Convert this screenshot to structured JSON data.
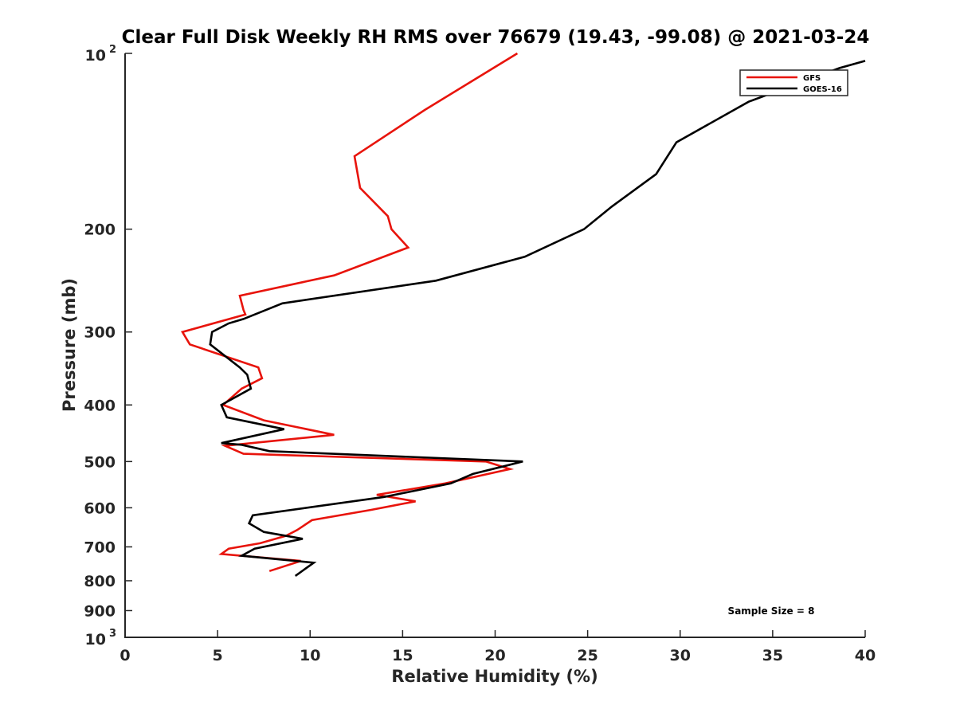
{
  "chart_data": {
    "type": "line",
    "title": "Clear Full Disk Weekly RH RMS over 76679 (19.43, -99.08) @ 2021-03-24",
    "xlabel": "Relative Humidity (%)",
    "ylabel": "Pressure (mb)",
    "xlim": [
      0,
      40
    ],
    "ylim": [
      100,
      1000
    ],
    "y_scale": "log",
    "y_reversed": true,
    "x_ticks": [
      "0",
      "5",
      "10",
      "15",
      "20",
      "25",
      "30",
      "35",
      "40"
    ],
    "y_ticks": [
      {
        "value": 100,
        "base": "10",
        "exp": "2"
      },
      {
        "value": 200,
        "label": "200"
      },
      {
        "value": 300,
        "label": "300"
      },
      {
        "value": 400,
        "label": "400"
      },
      {
        "value": 500,
        "label": "500"
      },
      {
        "value": 600,
        "label": "600"
      },
      {
        "value": 700,
        "label": "700"
      },
      {
        "value": 800,
        "label": "800"
      },
      {
        "value": 900,
        "label": "900"
      },
      {
        "value": 1000,
        "base": "10",
        "exp": "3"
      }
    ],
    "grid": false,
    "legend_position": "top-right",
    "annotation": "Sample Size = 8",
    "series": [
      {
        "name": "GFS",
        "color": "#e8140c",
        "points": [
          [
            21.2,
            100
          ],
          [
            16.2,
            125
          ],
          [
            12.4,
            150
          ],
          [
            12.7,
            170
          ],
          [
            14.2,
            190
          ],
          [
            14.4,
            200
          ],
          [
            15.3,
            215
          ],
          [
            11.3,
            240
          ],
          [
            6.2,
            260
          ],
          [
            6.4,
            275
          ],
          [
            6.5,
            280
          ],
          [
            3.1,
            300
          ],
          [
            3.5,
            315
          ],
          [
            7.2,
            345
          ],
          [
            7.4,
            360
          ],
          [
            6.3,
            375
          ],
          [
            5.3,
            400
          ],
          [
            7.5,
            425
          ],
          [
            11.3,
            450
          ],
          [
            5.4,
            470
          ],
          [
            6.4,
            485
          ],
          [
            19.5,
            500
          ],
          [
            20.8,
            515
          ],
          [
            17.3,
            545
          ],
          [
            13.6,
            570
          ],
          [
            15.7,
            585
          ],
          [
            13.3,
            605
          ],
          [
            10.1,
            630
          ],
          [
            9.3,
            655
          ],
          [
            8.7,
            670
          ],
          [
            7.3,
            690
          ],
          [
            5.6,
            705
          ],
          [
            5.2,
            720
          ],
          [
            9.5,
            740
          ],
          [
            7.8,
            770
          ]
        ]
      },
      {
        "name": "GOES-16",
        "color": "#000000",
        "points": [
          [
            40.0,
            103
          ],
          [
            38.6,
            106
          ],
          [
            33.7,
            121
          ],
          [
            29.8,
            142
          ],
          [
            28.7,
            161
          ],
          [
            26.3,
            183
          ],
          [
            24.8,
            200
          ],
          [
            21.6,
            223
          ],
          [
            16.8,
            245
          ],
          [
            8.5,
            268
          ],
          [
            6.4,
            285
          ],
          [
            5.6,
            290
          ],
          [
            4.7,
            300
          ],
          [
            4.6,
            315
          ],
          [
            6.2,
            345
          ],
          [
            6.6,
            355
          ],
          [
            6.8,
            375
          ],
          [
            5.2,
            400
          ],
          [
            5.5,
            420
          ],
          [
            8.6,
            440
          ],
          [
            5.2,
            465
          ],
          [
            6.3,
            468
          ],
          [
            7.8,
            480
          ],
          [
            21.5,
            500
          ],
          [
            18.8,
            525
          ],
          [
            17.6,
            545
          ],
          [
            14.0,
            575
          ],
          [
            6.9,
            618
          ],
          [
            6.7,
            638
          ],
          [
            7.5,
            660
          ],
          [
            9.6,
            678
          ],
          [
            7.0,
            705
          ],
          [
            6.3,
            725
          ],
          [
            10.2,
            745
          ],
          [
            9.2,
            785
          ]
        ]
      }
    ]
  }
}
